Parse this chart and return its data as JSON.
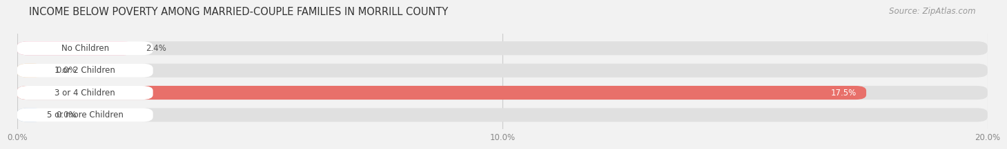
{
  "title": "INCOME BELOW POVERTY AMONG MARRIED-COUPLE FAMILIES IN MORRILL COUNTY",
  "source": "Source: ZipAtlas.com",
  "categories": [
    "No Children",
    "1 or 2 Children",
    "3 or 4 Children",
    "5 or more Children"
  ],
  "values": [
    2.4,
    0.0,
    17.5,
    0.0
  ],
  "bar_colors": [
    "#f48caa",
    "#f5c897",
    "#e8706a",
    "#a8c4e0"
  ],
  "xlim": [
    0,
    20.0
  ],
  "xticks": [
    0.0,
    10.0,
    20.0
  ],
  "xtick_labels": [
    "0.0%",
    "10.0%",
    "20.0%"
  ],
  "bg_color": "#f2f2f2",
  "bar_bg_color": "#e0e0e0",
  "title_fontsize": 10.5,
  "source_fontsize": 8.5,
  "label_fontsize": 8.5,
  "value_fontsize": 8.5,
  "tick_fontsize": 8.5
}
